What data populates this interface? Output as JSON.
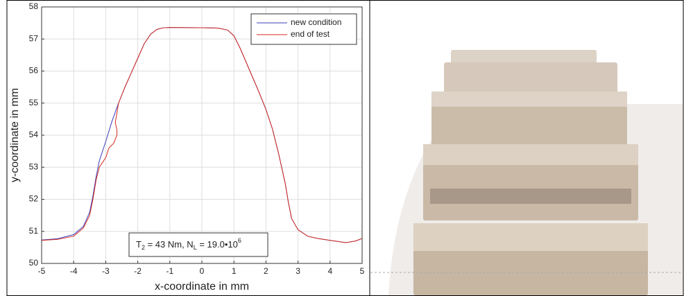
{
  "chart_data": {
    "type": "line",
    "xlabel": "x-coordinate in mm",
    "ylabel": "y-coordinate in mm",
    "xlim": [
      -5,
      5
    ],
    "ylim": [
      50,
      58
    ],
    "xticks": [
      -5,
      -4,
      -3,
      -2,
      -1,
      0,
      1,
      2,
      3,
      4,
      5
    ],
    "yticks": [
      50,
      51,
      52,
      53,
      54,
      55,
      56,
      57,
      58
    ],
    "grid": true,
    "legend": "upper right",
    "annotation": [
      "T",
      "2",
      " = 43 Nm, N",
      "L",
      " = 19.0•10",
      "6"
    ],
    "series": [
      {
        "name": "new condition",
        "color": "#3b3bb8",
        "x": [
          -5,
          -4.5,
          -4,
          -3.7,
          -3.5,
          -3.4,
          -3.3,
          -3.2,
          -3,
          -2.8,
          -2.6,
          -2.4,
          -2.2,
          -2,
          -1.8,
          -1.6,
          -1.4,
          -1.2,
          -1,
          0,
          0.5,
          0.8,
          1,
          1.2,
          1.5,
          1.8,
          2,
          2.2,
          2.4,
          2.6,
          2.7,
          2.8,
          3,
          3.3,
          3.6,
          4,
          4.5,
          4.8,
          5
        ],
        "values": [
          50.73,
          50.77,
          50.9,
          51.15,
          51.6,
          52.1,
          52.7,
          53.2,
          53.8,
          54.45,
          55.0,
          55.5,
          55.95,
          56.4,
          56.85,
          57.15,
          57.3,
          57.35,
          57.36,
          57.35,
          57.34,
          57.28,
          57.1,
          56.7,
          56.0,
          55.3,
          54.8,
          54.2,
          53.4,
          52.5,
          51.9,
          51.4,
          51.05,
          50.85,
          50.78,
          50.72,
          50.65,
          50.7,
          50.78
        ]
      },
      {
        "name": "end of test",
        "color": "#d42a1e",
        "x": [
          -5,
          -4.5,
          -4,
          -3.7,
          -3.5,
          -3.4,
          -3.3,
          -3.2,
          -3,
          -2.9,
          -2.75,
          -2.65,
          -2.65,
          -2.7,
          -2.6,
          -2.4,
          -2.2,
          -2,
          -1.8,
          -1.6,
          -1.4,
          -1.2,
          -1,
          0,
          0.5,
          0.8,
          1,
          1.2,
          1.5,
          1.8,
          2,
          2.2,
          2.4,
          2.6,
          2.7,
          2.8,
          3,
          3.3,
          3.6,
          4,
          4.5,
          4.8,
          5
        ],
        "values": [
          50.72,
          50.75,
          50.85,
          51.1,
          51.5,
          52.0,
          52.6,
          53.0,
          53.3,
          53.6,
          53.75,
          54.0,
          54.15,
          54.4,
          55.0,
          55.5,
          55.95,
          56.4,
          56.85,
          57.15,
          57.3,
          57.35,
          57.36,
          57.35,
          57.34,
          57.28,
          57.1,
          56.7,
          56.0,
          55.3,
          54.8,
          54.2,
          53.4,
          52.5,
          51.9,
          51.4,
          51.05,
          50.85,
          50.78,
          50.72,
          50.65,
          50.7,
          50.78
        ]
      }
    ]
  }
}
